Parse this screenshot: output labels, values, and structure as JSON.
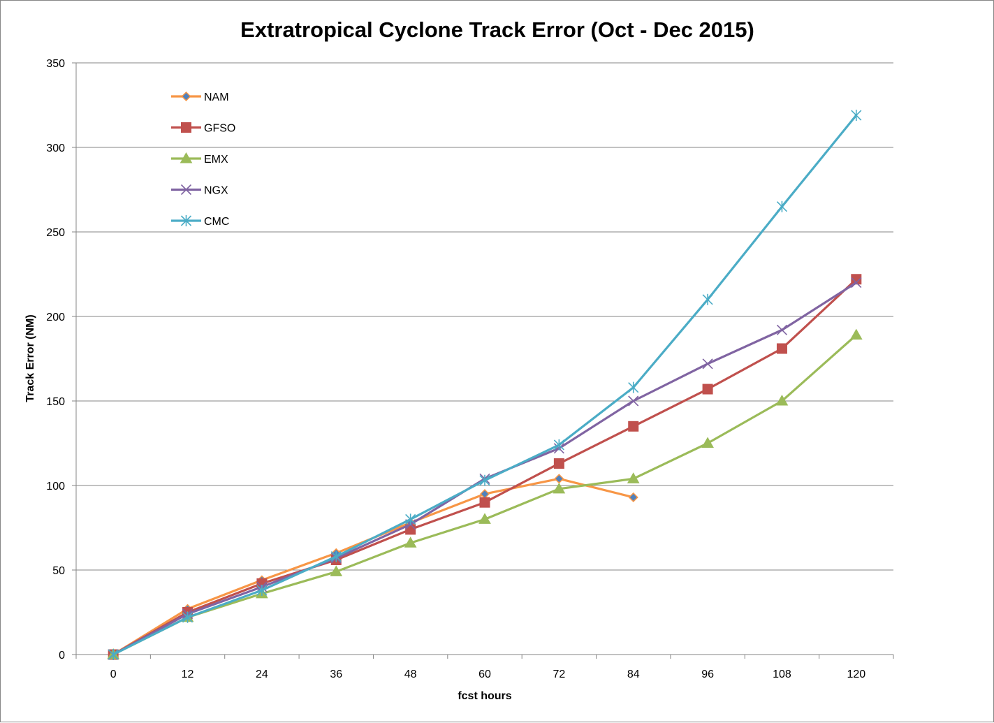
{
  "chart_data": {
    "type": "line",
    "title": "Extratropical Cyclone Track Error (Oct - Dec 2015)",
    "xlabel": "fcst hours",
    "ylabel": "Track Error (NM)",
    "categories": [
      "0",
      "12",
      "24",
      "36",
      "48",
      "60",
      "72",
      "84",
      "96",
      "108",
      "120"
    ],
    "ylim": [
      0,
      350
    ],
    "yticks": [
      "0",
      "50",
      "100",
      "150",
      "200",
      "250",
      "300",
      "350"
    ],
    "grid": "horizontal",
    "legend_position": "top-left inside plot",
    "series": [
      {
        "name": "NAM",
        "color": "#F79646",
        "marker_color": "#4F81BD",
        "marker": "diamond",
        "values": [
          0,
          27,
          44,
          60,
          78,
          95,
          104,
          93,
          null,
          null,
          null
        ]
      },
      {
        "name": "GFSO",
        "color": "#C0504D",
        "marker_color": "#C0504D",
        "marker": "square",
        "values": [
          0,
          25,
          42,
          56,
          74,
          90,
          113,
          135,
          157,
          181,
          222
        ]
      },
      {
        "name": "EMX",
        "color": "#9BBB59",
        "marker_color": "#9BBB59",
        "marker": "triangle",
        "values": [
          0,
          22,
          36,
          49,
          66,
          80,
          98,
          104,
          125,
          150,
          189
        ]
      },
      {
        "name": "NGX",
        "color": "#8064A2",
        "marker_color": "#8064A2",
        "marker": "x",
        "values": [
          0,
          24,
          40,
          57,
          77,
          104,
          122,
          150,
          172,
          192,
          220
        ]
      },
      {
        "name": "CMC",
        "color": "#4BACC6",
        "marker_color": "#4BACC6",
        "marker": "star",
        "values": [
          0,
          22,
          38,
          58,
          80,
          103,
          124,
          158,
          210,
          265,
          319
        ]
      }
    ]
  }
}
